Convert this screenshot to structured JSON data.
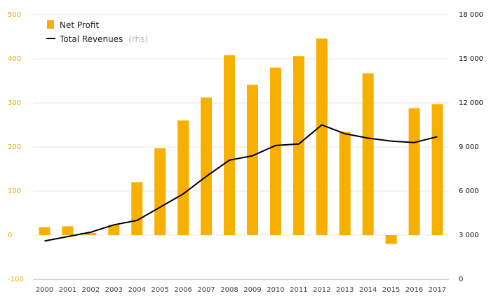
{
  "chart_data": {
    "type": "bar",
    "categories": [
      "2000",
      "2001",
      "2002",
      "2003",
      "2004",
      "2005",
      "2006",
      "2007",
      "2008",
      "2009",
      "2010",
      "2011",
      "2012",
      "2013",
      "2014",
      "2015",
      "2016",
      "2017"
    ],
    "series": [
      {
        "name": "Net Profit",
        "type": "bar",
        "axis": "left",
        "color": "#f8b000",
        "values": [
          18,
          20,
          5,
          23,
          120,
          197,
          260,
          312,
          408,
          341,
          380,
          406,
          446,
          234,
          367,
          -20,
          288,
          297
        ]
      },
      {
        "name": "Total Revenues",
        "name_note": "(rhs)",
        "type": "line",
        "axis": "right",
        "color": "#000000",
        "values": [
          2600,
          2900,
          3200,
          3700,
          4000,
          4900,
          5800,
          7000,
          8100,
          8400,
          9100,
          9200,
          10500,
          9900,
          9600,
          9400,
          9300,
          9700
        ]
      }
    ],
    "left_axis": {
      "ylim": [
        -100,
        500
      ],
      "ticks": [
        "-100",
        "0",
        "100",
        "200",
        "300",
        "400",
        "500"
      ],
      "tick_values": [
        -100,
        0,
        100,
        200,
        300,
        400,
        500
      ],
      "color": "#f5a800"
    },
    "right_axis": {
      "ylim": [
        0,
        18000
      ],
      "ticks": [
        "0",
        "3 000",
        "6 000",
        "9 000",
        "12 000",
        "15 000",
        "18 000"
      ],
      "tick_values": [
        0,
        3000,
        6000,
        9000,
        12000,
        15000,
        18000
      ],
      "color": "#111111"
    },
    "grid": true,
    "legend_position": "top-left",
    "title": "",
    "xlabel": "",
    "ylabel": ""
  }
}
